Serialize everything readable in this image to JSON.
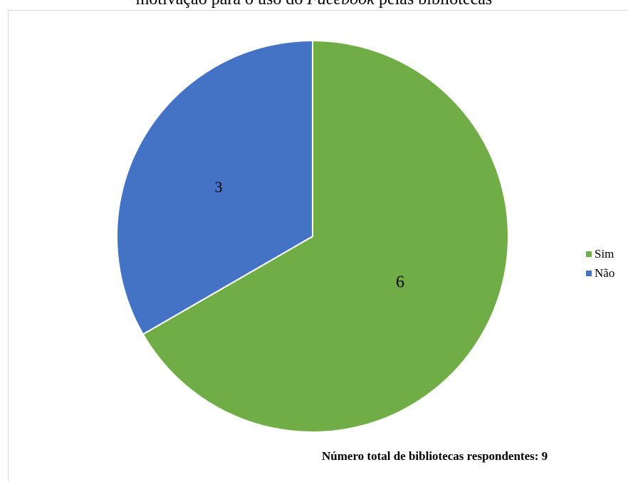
{
  "title": {
    "prefix": "motivação para o uso do ",
    "emphasis": "Facebook",
    "suffix": " pelas bibliotecas"
  },
  "chart_data": {
    "type": "pie",
    "categories": [
      "Sim",
      "Não"
    ],
    "values": [
      6,
      3
    ],
    "data_labels": [
      "6",
      "3"
    ],
    "colors": [
      "#70AD47",
      "#4472C4"
    ],
    "legend": "right",
    "start": "12 o'clock, clockwise"
  },
  "legend": {
    "items": [
      {
        "label": "Sim",
        "color": "#70AD47"
      },
      {
        "label": "Não",
        "color": "#4472C4"
      }
    ]
  },
  "footnote": "Número total de bibliotecas respondentes: 9"
}
